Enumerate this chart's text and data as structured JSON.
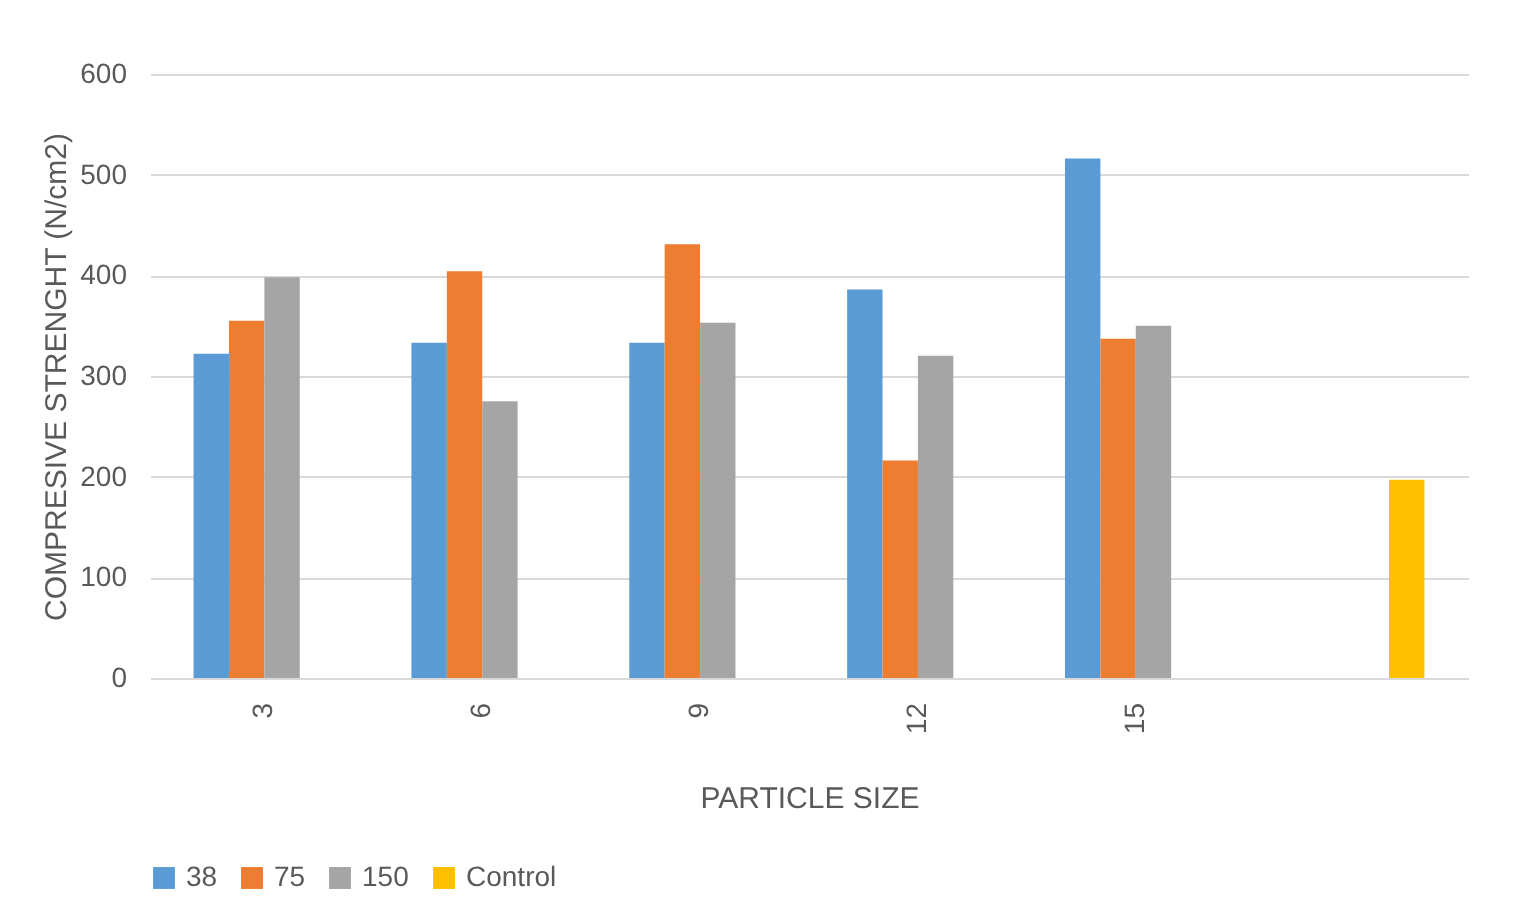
{
  "chart_data": {
    "type": "bar",
    "xlabel": "PARTICLE SIZE",
    "ylabel": "COMPRESIVE STRENGHT (N/cm2)",
    "categories": [
      "3",
      "6",
      "9",
      "12",
      "15",
      null
    ],
    "series": [
      {
        "name": "38",
        "color": "#5b9bd5",
        "values": [
          322,
          333,
          333,
          386,
          516,
          null
        ]
      },
      {
        "name": "75",
        "color": "#ed7d31",
        "values": [
          355,
          404,
          431,
          216,
          337,
          null
        ]
      },
      {
        "name": "150",
        "color": "#a5a5a5",
        "values": [
          398,
          275,
          353,
          320,
          350,
          null
        ]
      },
      {
        "name": "Control",
        "color": "#ffc000",
        "values": [
          null,
          null,
          null,
          null,
          null,
          197
        ]
      }
    ],
    "ylim": [
      0,
      600
    ],
    "yticks": [
      0,
      100,
      200,
      300,
      400,
      500,
      600
    ],
    "grid": "y",
    "legend": "bottom"
  }
}
